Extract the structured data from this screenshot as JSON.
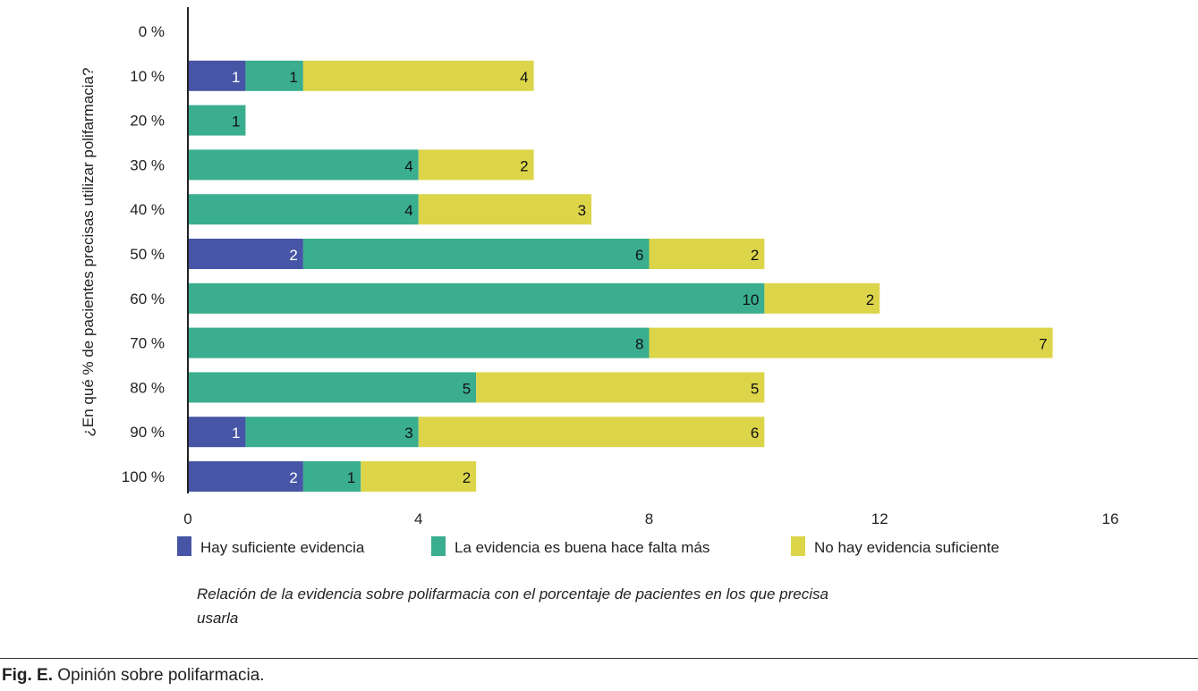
{
  "chart_data": {
    "type": "bar",
    "orientation": "horizontal",
    "stacked": true,
    "ylabel": "¿En qué % de pacientes precisas utilizar polifarmacia?",
    "xlabel": "",
    "categories": [
      "0 %",
      "10 %",
      "20 %",
      "30 %",
      "40 %",
      "50 %",
      "60 %",
      "70 %",
      "80 %",
      "90 %",
      "100 %"
    ],
    "series": [
      {
        "name": "Hay suficiente evidencia",
        "color": "#4655a5",
        "values": [
          0,
          1,
          0,
          0,
          0,
          2,
          0,
          0,
          0,
          1,
          2
        ]
      },
      {
        "name": "La evidencia es buena hace falta más",
        "color": "#3aae8e",
        "values": [
          0,
          1,
          1,
          4,
          4,
          6,
          10,
          8,
          5,
          3,
          1
        ]
      },
      {
        "name": "No hay evidencia suficiente",
        "color": "#dcd54a",
        "values": [
          0,
          4,
          0,
          2,
          3,
          2,
          2,
          7,
          5,
          6,
          2
        ]
      }
    ],
    "xlim": [
      0,
      16
    ],
    "xticks": [
      "0",
      "4",
      "8",
      "12",
      "16"
    ],
    "grid": false,
    "legend_position": "bottom",
    "data_labels": true
  },
  "caption": "Relación de la evidencia sobre polifarmacia con el porcentaje de pacientes en los que precisa usarla",
  "caption_lines": [
    "Relación de la evidencia sobre polifarmacia con el porcentaje de pacientes en los que precisa",
    "usarla"
  ],
  "figure": {
    "label": "Fig. E.",
    "text": "Opinión sobre polifarmacia."
  }
}
